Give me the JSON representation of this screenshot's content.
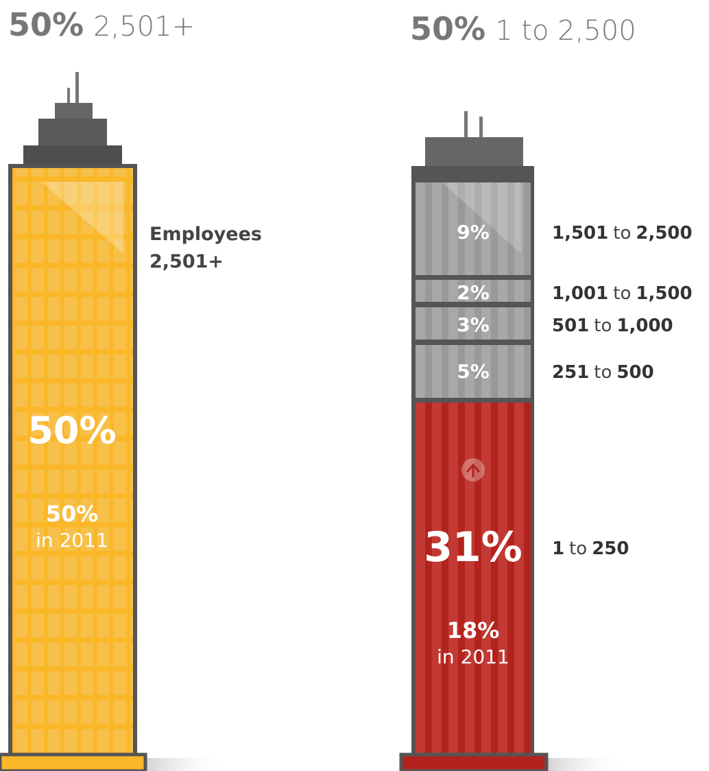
{
  "left": {
    "share": "50%",
    "label": "2,501+",
    "caption": [
      "Employees",
      "2,501+"
    ],
    "big": "50%",
    "prev": "50%",
    "prev_note": "in 2011"
  },
  "right": {
    "share": "50%",
    "label": "1 to 2,500",
    "segments": [
      {
        "pct": "9%",
        "from": "1,501",
        "sep": "to",
        "to": "2,500"
      },
      {
        "pct": "2%",
        "from": "1,001",
        "sep": "to",
        "to": "1,500"
      },
      {
        "pct": "3%",
        "from": "501",
        "sep": "to",
        "to": "1,000"
      },
      {
        "pct": "5%",
        "from": "251",
        "sep": "to",
        "to": "500"
      },
      {
        "pct": "31%",
        "from": "1",
        "sep": "to",
        "to": "250",
        "prev": "18%",
        "prev_note": "in 2011"
      }
    ]
  }
}
